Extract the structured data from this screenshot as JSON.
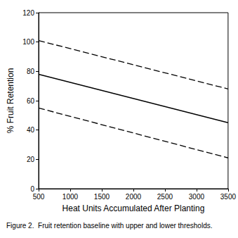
{
  "chart_data": {
    "type": "line",
    "title": "Figure 2.  Fruit retention baseline with upper and lower thresholds.",
    "x_label": "Heat Units Accumulated After Planting",
    "y_label": "% Fruit Retention",
    "x": [
      500,
      3500
    ],
    "series": [
      {
        "color": "#000000",
        "line_style": "dashed",
        "values": [
          101,
          68
        ]
      },
      {
        "color": "#000000",
        "line_style": "solid",
        "values": [
          78,
          45
        ]
      },
      {
        "color": "#000000",
        "line_style": "dashed",
        "values": [
          55,
          21
        ]
      }
    ],
    "xlim": [
      500,
      3500
    ],
    "xticks": [
      500,
      1000,
      1500,
      2000,
      2500,
      3000,
      3500
    ],
    "ylim": [
      0,
      120
    ],
    "yticks": [
      0,
      20,
      40,
      60,
      80,
      100,
      120
    ],
    "grid": false
  }
}
